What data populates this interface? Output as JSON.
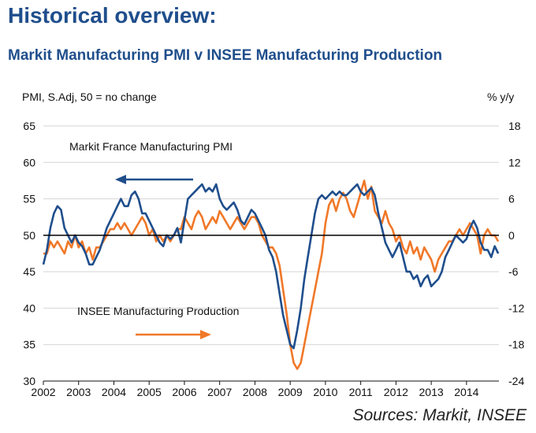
{
  "header": {
    "title": "Historical overview:",
    "subtitle": "Markit Manufacturing PMI v INSEE Manufacturing Production"
  },
  "footer": {
    "source": "Sources: Markit, INSEE"
  },
  "colors": {
    "pmi": "#1f4e8c",
    "production": "#f07828",
    "grid": "#d4d4d4",
    "zero": "#000000"
  },
  "chart_data": {
    "type": "line",
    "title": "Markit Manufacturing PMI v INSEE Manufacturing Production",
    "ylabel_left": "PMI, S.Adj, 50 = no change",
    "ylabel_right": "% y/y",
    "x_tick_labels": [
      "2002",
      "2003",
      "2004",
      "2005",
      "2006",
      "2007",
      "2008",
      "2009",
      "2010",
      "2011",
      "2012",
      "2013",
      "2014"
    ],
    "xlim": [
      2002,
      2014.92
    ],
    "ylim_left": [
      30,
      65
    ],
    "yticks_left": [
      30,
      35,
      40,
      45,
      50,
      55,
      60,
      65
    ],
    "ylim_right": [
      -24,
      18
    ],
    "yticks_right": [
      -24,
      -18,
      -12,
      -6,
      0,
      6,
      12,
      18
    ],
    "grid": true,
    "series": [
      {
        "name": "Markit France Manufacturing PMI",
        "axis": "left",
        "points": [
          [
            2002.0,
            46
          ],
          [
            2002.1,
            48
          ],
          [
            2002.2,
            51
          ],
          [
            2002.3,
            53
          ],
          [
            2002.4,
            54
          ],
          [
            2002.5,
            53.5
          ],
          [
            2002.6,
            51
          ],
          [
            2002.7,
            50
          ],
          [
            2002.8,
            49
          ],
          [
            2002.9,
            50
          ],
          [
            2003.0,
            49
          ],
          [
            2003.1,
            48.5
          ],
          [
            2003.2,
            47.5
          ],
          [
            2003.3,
            46
          ],
          [
            2003.4,
            46
          ],
          [
            2003.5,
            47
          ],
          [
            2003.6,
            48
          ],
          [
            2003.7,
            49.5
          ],
          [
            2003.8,
            51
          ],
          [
            2003.9,
            52
          ],
          [
            2004.0,
            53
          ],
          [
            2004.1,
            54
          ],
          [
            2004.2,
            55
          ],
          [
            2004.3,
            54
          ],
          [
            2004.4,
            54
          ],
          [
            2004.5,
            55.5
          ],
          [
            2004.6,
            56
          ],
          [
            2004.7,
            55
          ],
          [
            2004.8,
            53
          ],
          [
            2004.9,
            53
          ],
          [
            2005.0,
            52
          ],
          [
            2005.1,
            51
          ],
          [
            2005.2,
            50
          ],
          [
            2005.3,
            49
          ],
          [
            2005.4,
            48.5
          ],
          [
            2005.5,
            50
          ],
          [
            2005.6,
            49.5
          ],
          [
            2005.7,
            50
          ],
          [
            2005.8,
            51
          ],
          [
            2005.9,
            49
          ],
          [
            2006.0,
            52
          ],
          [
            2006.1,
            55
          ],
          [
            2006.2,
            55.5
          ],
          [
            2006.3,
            56
          ],
          [
            2006.4,
            56.5
          ],
          [
            2006.5,
            57
          ],
          [
            2006.6,
            56
          ],
          [
            2006.7,
            56.5
          ],
          [
            2006.8,
            56
          ],
          [
            2006.9,
            57
          ],
          [
            2007.0,
            55
          ],
          [
            2007.1,
            54
          ],
          [
            2007.2,
            53.5
          ],
          [
            2007.3,
            54
          ],
          [
            2007.4,
            54.5
          ],
          [
            2007.5,
            53.5
          ],
          [
            2007.6,
            52
          ],
          [
            2007.7,
            51.5
          ],
          [
            2007.8,
            52.5
          ],
          [
            2007.9,
            53.5
          ],
          [
            2008.0,
            53
          ],
          [
            2008.1,
            52
          ],
          [
            2008.2,
            51
          ],
          [
            2008.3,
            50
          ],
          [
            2008.4,
            48
          ],
          [
            2008.5,
            47
          ],
          [
            2008.6,
            45
          ],
          [
            2008.7,
            42
          ],
          [
            2008.8,
            39
          ],
          [
            2008.9,
            37
          ],
          [
            2009.0,
            35
          ],
          [
            2009.1,
            34.5
          ],
          [
            2009.2,
            37
          ],
          [
            2009.3,
            40
          ],
          [
            2009.4,
            44
          ],
          [
            2009.5,
            47
          ],
          [
            2009.6,
            50
          ],
          [
            2009.7,
            53
          ],
          [
            2009.8,
            55
          ],
          [
            2009.9,
            55.5
          ],
          [
            2010.0,
            55
          ],
          [
            2010.1,
            55.5
          ],
          [
            2010.2,
            56
          ],
          [
            2010.3,
            55.5
          ],
          [
            2010.4,
            56
          ],
          [
            2010.5,
            55.5
          ],
          [
            2010.6,
            55.5
          ],
          [
            2010.7,
            56
          ],
          [
            2010.8,
            56.5
          ],
          [
            2010.9,
            57
          ],
          [
            2011.0,
            56
          ],
          [
            2011.1,
            55.5
          ],
          [
            2011.2,
            56
          ],
          [
            2011.3,
            56.5
          ],
          [
            2011.4,
            55.5
          ],
          [
            2011.5,
            53
          ],
          [
            2011.6,
            51
          ],
          [
            2011.7,
            49
          ],
          [
            2011.8,
            48
          ],
          [
            2011.9,
            47
          ],
          [
            2012.0,
            48
          ],
          [
            2012.1,
            49
          ],
          [
            2012.2,
            47
          ],
          [
            2012.3,
            45
          ],
          [
            2012.4,
            45
          ],
          [
            2012.5,
            44
          ],
          [
            2012.6,
            44.5
          ],
          [
            2012.7,
            43
          ],
          [
            2012.8,
            44
          ],
          [
            2012.9,
            44.5
          ],
          [
            2013.0,
            43
          ],
          [
            2013.1,
            43.5
          ],
          [
            2013.2,
            44
          ],
          [
            2013.3,
            45
          ],
          [
            2013.4,
            47
          ],
          [
            2013.5,
            48
          ],
          [
            2013.6,
            49
          ],
          [
            2013.7,
            50
          ],
          [
            2013.8,
            49.5
          ],
          [
            2013.9,
            49
          ],
          [
            2014.0,
            49.5
          ],
          [
            2014.1,
            51
          ],
          [
            2014.2,
            52
          ],
          [
            2014.3,
            51
          ],
          [
            2014.4,
            49
          ],
          [
            2014.5,
            48
          ],
          [
            2014.6,
            48
          ],
          [
            2014.7,
            47
          ],
          [
            2014.8,
            48.5
          ],
          [
            2014.9,
            47.5
          ]
        ]
      },
      {
        "name": "INSEE Manufacturing Production",
        "axis": "right",
        "points": [
          [
            2002.0,
            -3
          ],
          [
            2002.1,
            -3
          ],
          [
            2002.2,
            -1
          ],
          [
            2002.3,
            -2
          ],
          [
            2002.4,
            -1
          ],
          [
            2002.5,
            -2
          ],
          [
            2002.6,
            -3
          ],
          [
            2002.7,
            -1
          ],
          [
            2002.8,
            -2
          ],
          [
            2002.9,
            0
          ],
          [
            2003.0,
            -2
          ],
          [
            2003.1,
            -1
          ],
          [
            2003.2,
            -3
          ],
          [
            2003.3,
            -2
          ],
          [
            2003.4,
            -4
          ],
          [
            2003.5,
            -2
          ],
          [
            2003.6,
            -2
          ],
          [
            2003.7,
            -1
          ],
          [
            2003.8,
            0
          ],
          [
            2003.9,
            1
          ],
          [
            2004.0,
            1
          ],
          [
            2004.1,
            2
          ],
          [
            2004.2,
            1
          ],
          [
            2004.3,
            2
          ],
          [
            2004.4,
            1
          ],
          [
            2004.5,
            0
          ],
          [
            2004.6,
            1
          ],
          [
            2004.7,
            2
          ],
          [
            2004.8,
            3
          ],
          [
            2004.9,
            2
          ],
          [
            2005.0,
            0
          ],
          [
            2005.1,
            1
          ],
          [
            2005.2,
            -1
          ],
          [
            2005.3,
            0
          ],
          [
            2005.4,
            -1
          ],
          [
            2005.5,
            0
          ],
          [
            2005.6,
            -1
          ],
          [
            2005.7,
            0
          ],
          [
            2005.8,
            1
          ],
          [
            2005.9,
            1
          ],
          [
            2006.0,
            3
          ],
          [
            2006.1,
            2
          ],
          [
            2006.2,
            1
          ],
          [
            2006.3,
            3
          ],
          [
            2006.4,
            4
          ],
          [
            2006.5,
            3
          ],
          [
            2006.6,
            1
          ],
          [
            2006.7,
            2
          ],
          [
            2006.8,
            3
          ],
          [
            2006.9,
            2
          ],
          [
            2007.0,
            4
          ],
          [
            2007.1,
            3
          ],
          [
            2007.2,
            2
          ],
          [
            2007.3,
            1
          ],
          [
            2007.4,
            2
          ],
          [
            2007.5,
            3
          ],
          [
            2007.6,
            2
          ],
          [
            2007.7,
            1
          ],
          [
            2007.8,
            2
          ],
          [
            2007.9,
            3
          ],
          [
            2008.0,
            3
          ],
          [
            2008.1,
            2
          ],
          [
            2008.2,
            0
          ],
          [
            2008.3,
            -1
          ],
          [
            2008.4,
            -2
          ],
          [
            2008.5,
            -2
          ],
          [
            2008.6,
            -3
          ],
          [
            2008.7,
            -5
          ],
          [
            2008.8,
            -9
          ],
          [
            2008.9,
            -13
          ],
          [
            2009.0,
            -18
          ],
          [
            2009.1,
            -21
          ],
          [
            2009.2,
            -22
          ],
          [
            2009.3,
            -21
          ],
          [
            2009.4,
            -18
          ],
          [
            2009.5,
            -15
          ],
          [
            2009.6,
            -12
          ],
          [
            2009.7,
            -9
          ],
          [
            2009.8,
            -6
          ],
          [
            2009.9,
            -3
          ],
          [
            2010.0,
            2
          ],
          [
            2010.1,
            5
          ],
          [
            2010.2,
            6
          ],
          [
            2010.3,
            4
          ],
          [
            2010.4,
            6
          ],
          [
            2010.5,
            7
          ],
          [
            2010.6,
            6
          ],
          [
            2010.7,
            4
          ],
          [
            2010.8,
            3
          ],
          [
            2010.9,
            5
          ],
          [
            2011.0,
            7
          ],
          [
            2011.1,
            9
          ],
          [
            2011.2,
            6
          ],
          [
            2011.3,
            8
          ],
          [
            2011.4,
            4
          ],
          [
            2011.5,
            3
          ],
          [
            2011.6,
            2
          ],
          [
            2011.7,
            4
          ],
          [
            2011.8,
            2
          ],
          [
            2011.9,
            1
          ],
          [
            2012.0,
            -1
          ],
          [
            2012.1,
            0
          ],
          [
            2012.2,
            -2
          ],
          [
            2012.3,
            -3
          ],
          [
            2012.4,
            -1
          ],
          [
            2012.5,
            -3
          ],
          [
            2012.6,
            -2
          ],
          [
            2012.7,
            -4
          ],
          [
            2012.8,
            -2
          ],
          [
            2012.9,
            -3
          ],
          [
            2013.0,
            -4
          ],
          [
            2013.1,
            -6
          ],
          [
            2013.2,
            -4
          ],
          [
            2013.3,
            -3
          ],
          [
            2013.4,
            -2
          ],
          [
            2013.5,
            -1
          ],
          [
            2013.6,
            -1
          ],
          [
            2013.7,
            0
          ],
          [
            2013.8,
            1
          ],
          [
            2013.9,
            0
          ],
          [
            2014.0,
            1
          ],
          [
            2014.1,
            2
          ],
          [
            2014.2,
            1
          ],
          [
            2014.3,
            0
          ],
          [
            2014.4,
            -3
          ],
          [
            2014.5,
            0
          ],
          [
            2014.6,
            1
          ],
          [
            2014.7,
            0
          ],
          [
            2014.8,
            0
          ],
          [
            2014.9,
            -1
          ]
        ]
      }
    ],
    "annotations": [
      {
        "text": "Markit France Manufacturing PMI",
        "arrow": "left",
        "series": 0
      },
      {
        "text": "INSEE Manufacturing Production",
        "arrow": "right",
        "series": 1
      }
    ]
  }
}
